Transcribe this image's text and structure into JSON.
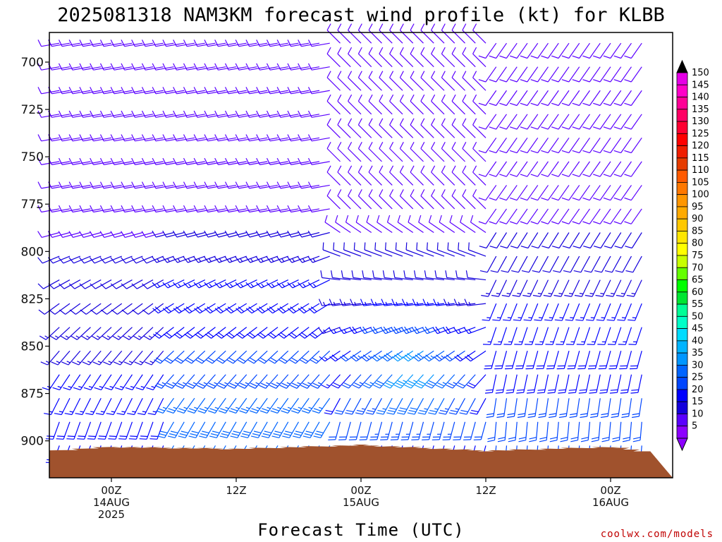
{
  "chart_data": {
    "type": "wind-barb-profile",
    "title": "2025081318 NAM3KM forecast wind profile (kt) for KLBB",
    "xlabel": "Forecast Time (UTC)",
    "ylabel": "",
    "credit": "coolwx.com/models",
    "y_axis": {
      "unit": "hPa",
      "range": [
        910,
        685
      ],
      "ticks": [
        "700",
        "725",
        "750",
        "775",
        "800",
        "825",
        "850",
        "875",
        "900"
      ]
    },
    "x_axis": {
      "range_utc": [
        "2025-08-13T18Z",
        "2025-08-16T03Z"
      ],
      "ticks": [
        {
          "time": "2025-08-14T00Z",
          "lines": [
            "00Z",
            "14AUG",
            "2025"
          ]
        },
        {
          "time": "2025-08-14T12Z",
          "lines": [
            "12Z"
          ]
        },
        {
          "time": "2025-08-15T00Z",
          "lines": [
            "00Z",
            "15AUG"
          ]
        },
        {
          "time": "2025-08-15T12Z",
          "lines": [
            "12Z"
          ]
        },
        {
          "time": "2025-08-16T00Z",
          "lines": [
            "00Z",
            "16AUG"
          ]
        }
      ]
    },
    "colorbar": {
      "unit": "kt",
      "labels": [
        "150",
        "145",
        "140",
        "135",
        "130",
        "125",
        "120",
        "115",
        "110",
        "105",
        "100",
        "95",
        "90",
        "85",
        "80",
        "75",
        "70",
        "65",
        "60",
        "55",
        "50",
        "45",
        "40",
        "35",
        "30",
        "25",
        "20",
        "15",
        "10",
        "5"
      ],
      "colors": [
        "#e600e6",
        "#ff00c8",
        "#ff0096",
        "#ff0064",
        "#ff0032",
        "#ff0000",
        "#f01e00",
        "#e63c00",
        "#ff5a00",
        "#ff7800",
        "#ff9600",
        "#ffaa00",
        "#ffc800",
        "#ffe600",
        "#ffff00",
        "#c8ff00",
        "#64ff00",
        "#00ff00",
        "#00e632",
        "#00ff96",
        "#00ffc8",
        "#00dcff",
        "#00b4ff",
        "#0096ff",
        "#0064ff",
        "#0046ff",
        "#0000ff",
        "#1400dc",
        "#5a00ff",
        "#8c00ff"
      ]
    },
    "surface_pressure_hpa": [
      {
        "time": "2025-08-13T18Z",
        "p": 905
      },
      {
        "time": "2025-08-14T00Z",
        "p": 903
      },
      {
        "time": "2025-08-14T12Z",
        "p": 904
      },
      {
        "time": "2025-08-15T00Z",
        "p": 902
      },
      {
        "time": "2025-08-15T12Z",
        "p": 905
      },
      {
        "time": "2025-08-16T00Z",
        "p": 903
      },
      {
        "time": "2025-08-16T03Z",
        "p": 905
      }
    ],
    "wind_regime_kt": [
      {
        "period": "2025-08-13T18Z/2025-08-14T06Z",
        "low_levels": "S 10-20",
        "mid_levels": "W-SW 5-15"
      },
      {
        "period": "2025-08-14T06Z/2025-08-15T00Z",
        "low_levels": "S-SW 20-30",
        "mid_levels": "W 10-15"
      },
      {
        "period": "2025-08-15T06Z/2025-08-15T18Z",
        "low_levels": "SSW 25-40",
        "mid_levels": "variable 5-10"
      },
      {
        "period": "2025-08-15T18Z/2025-08-16T03Z",
        "low_levels": "S 10-25",
        "mid_levels": "S-SW 10-20"
      }
    ]
  }
}
